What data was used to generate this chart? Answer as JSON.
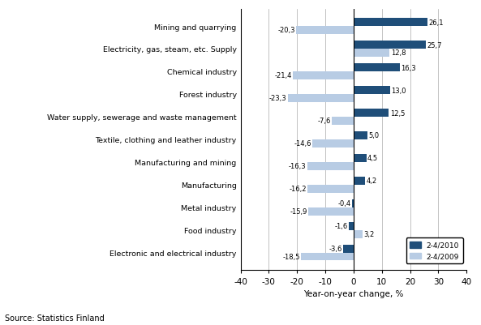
{
  "categories": [
    "Electronic and electrical industry",
    "Food industry",
    "Metal industry",
    "Manufacturing",
    "Manufacturing and mining",
    "Textile, clothing and leather industry",
    "Water supply, sewerage and waste management",
    "Forest industry",
    "Chemical industry",
    "Electricity, gas, steam, etc. Supply",
    "Mining and quarrying"
  ],
  "values_2010": [
    -3.6,
    -1.6,
    -0.4,
    4.2,
    4.5,
    5.0,
    12.5,
    13.0,
    16.3,
    25.7,
    26.1
  ],
  "values_2009": [
    -18.5,
    3.2,
    -15.9,
    -16.2,
    -16.3,
    -14.6,
    -7.6,
    -23.3,
    -21.4,
    12.8,
    -20.3
  ],
  "color_2010": "#1F4E79",
  "color_2009": "#B8CCE4",
  "xlabel": "Year-on-year change, %",
  "xlim": [
    -40,
    40
  ],
  "xticks": [
    -40,
    -30,
    -20,
    -10,
    0,
    10,
    20,
    30,
    40
  ],
  "legend_2010": "2-4/2010",
  "legend_2009": "2-4/2009",
  "source": "Source: Statistics Finland",
  "bar_height": 0.35
}
